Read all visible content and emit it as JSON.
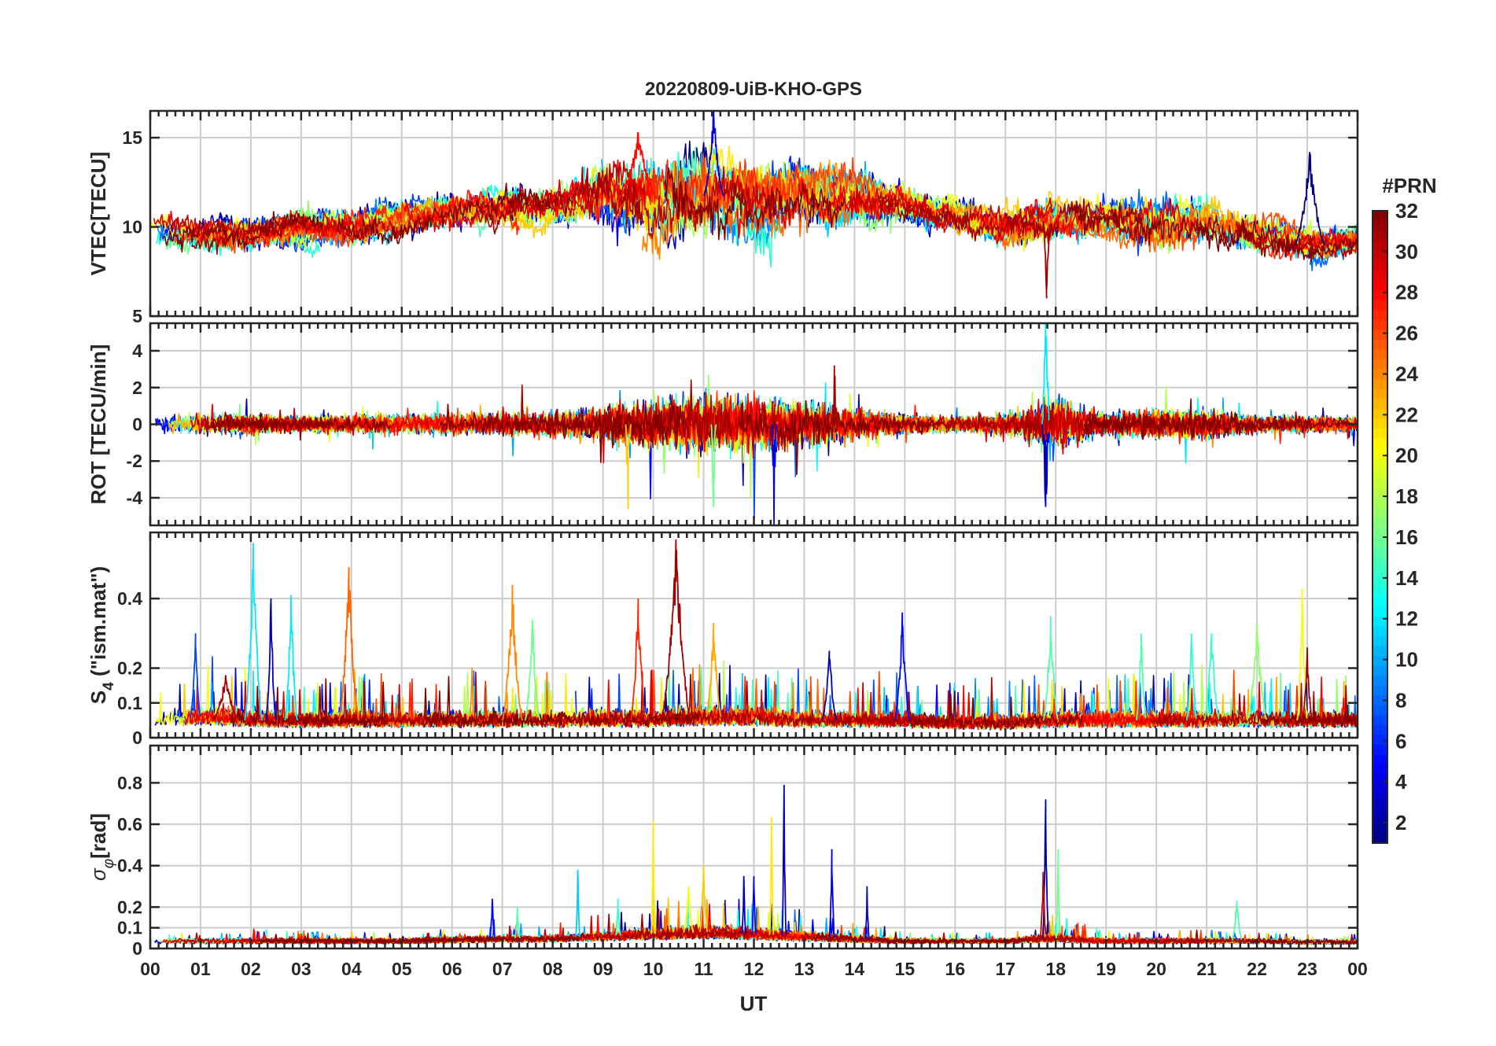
{
  "chart_data": [
    {
      "type": "line",
      "id": "vtec",
      "title": "20220809-UiB-KHO-GPS",
      "ylabel": "VTEC[TECU]",
      "ylim": [
        5,
        16.5
      ],
      "yticks": [
        5,
        10,
        15
      ],
      "base": [
        9.5,
        9.6,
        9.5,
        9.8,
        9.9,
        10.4,
        10.8,
        11.2,
        11.2,
        11.7,
        11.5,
        11.8,
        11.6,
        12.0,
        11.6,
        11.3,
        10.6,
        10.0,
        10.4,
        10.4,
        10.2,
        10.6,
        9.5,
        9.0,
        9.2
      ],
      "noise": [
        0.9,
        0.9,
        1.0,
        1.0,
        1.0,
        1.0,
        1.0,
        1.1,
        1.3,
        1.8,
        2.2,
        2.4,
        2.1,
        1.7,
        1.6,
        1.1,
        1.0,
        1.2,
        1.1,
        1.2,
        1.4,
        1.3,
        1.0,
        0.9,
        0.8
      ],
      "style": "wander"
    },
    {
      "type": "line",
      "id": "rot",
      "ylabel": "ROT [TECU/min]",
      "ylim": [
        -5.5,
        5.5
      ],
      "yticks": [
        -4,
        -2,
        0,
        2,
        4
      ],
      "base": [
        0,
        0,
        0,
        0,
        0,
        0,
        0,
        0,
        0,
        0,
        0,
        0,
        0,
        0,
        0,
        0,
        0,
        0,
        0,
        0,
        0,
        0,
        0,
        0,
        0
      ],
      "noise": [
        0.4,
        0.45,
        0.45,
        0.35,
        0.4,
        0.45,
        0.5,
        0.55,
        0.55,
        0.8,
        1.1,
        1.3,
        1.2,
        1.0,
        0.7,
        0.45,
        0.35,
        0.5,
        1.2,
        0.5,
        0.7,
        0.65,
        0.4,
        0.35,
        0.35
      ],
      "style": "zero"
    },
    {
      "type": "line",
      "id": "s4",
      "ylabel": "S4 (\"ism.mat\")",
      "ylabel_main": "S",
      "ylabel_sub": "4",
      "ylabel_rest": " (\"ism.mat\")",
      "ylim": [
        0,
        0.59
      ],
      "yticks": [
        0,
        0.1,
        0.2,
        0.4
      ],
      "base": [
        0.05,
        0.06,
        0.05,
        0.05,
        0.05,
        0.05,
        0.05,
        0.05,
        0.05,
        0.05,
        0.05,
        0.06,
        0.06,
        0.05,
        0.05,
        0.05,
        0.04,
        0.04,
        0.05,
        0.05,
        0.05,
        0.05,
        0.05,
        0.05,
        0.05
      ],
      "noise": [
        0.03,
        0.04,
        0.04,
        0.03,
        0.035,
        0.03,
        0.035,
        0.04,
        0.035,
        0.04,
        0.04,
        0.04,
        0.04,
        0.035,
        0.035,
        0.03,
        0.03,
        0.035,
        0.035,
        0.035,
        0.035,
        0.035,
        0.035,
        0.035,
        0.035
      ],
      "style": "positive"
    },
    {
      "type": "line",
      "id": "sigphi",
      "ylabel": "σφ[rad]",
      "ylabel_main": "σ",
      "ylabel_sub": "φ",
      "ylabel_rest": "[rad]",
      "ylim": [
        0,
        0.98
      ],
      "yticks": [
        0,
        0.1,
        0.2,
        0.4,
        0.6,
        0.8
      ],
      "base": [
        0.04,
        0.04,
        0.04,
        0.04,
        0.04,
        0.04,
        0.045,
        0.05,
        0.05,
        0.06,
        0.07,
        0.08,
        0.07,
        0.06,
        0.05,
        0.04,
        0.04,
        0.04,
        0.05,
        0.04,
        0.04,
        0.04,
        0.04,
        0.035,
        0.035
      ],
      "noise": [
        0.01,
        0.01,
        0.012,
        0.012,
        0.012,
        0.012,
        0.015,
        0.02,
        0.02,
        0.03,
        0.04,
        0.045,
        0.04,
        0.03,
        0.02,
        0.012,
        0.01,
        0.012,
        0.03,
        0.012,
        0.012,
        0.015,
        0.01,
        0.01,
        0.01
      ],
      "style": "positive"
    }
  ],
  "x_axis": {
    "label": "UT",
    "range_hours": [
      0,
      24
    ],
    "tick_labels": [
      "00",
      "01",
      "02",
      "03",
      "04",
      "05",
      "06",
      "07",
      "08",
      "09",
      "10",
      "11",
      "12",
      "13",
      "14",
      "15",
      "16",
      "17",
      "18",
      "19",
      "20",
      "21",
      "22",
      "23",
      "00"
    ]
  },
  "colorbar": {
    "label": "#PRN",
    "range": [
      1,
      32
    ],
    "tick_labels": [
      "2",
      "4",
      "6",
      "8",
      "10",
      "12",
      "14",
      "16",
      "18",
      "20",
      "22",
      "24",
      "26",
      "28",
      "30",
      "32"
    ],
    "colormap": "jet"
  },
  "series_prn": [
    1,
    2,
    3,
    4,
    5,
    6,
    7,
    8,
    9,
    10,
    11,
    12,
    13,
    14,
    15,
    16,
    17,
    18,
    19,
    20,
    21,
    22,
    23,
    24,
    25,
    26,
    27,
    28,
    29,
    30,
    31,
    32
  ],
  "events": {
    "vtec": [
      [
        23.05,
        14.2,
        0.6,
        1
      ],
      [
        17.82,
        6.0,
        0.15,
        31
      ],
      [
        11.2,
        16.5,
        0.4,
        4
      ],
      [
        9.7,
        15.2,
        0.8,
        28
      ]
    ],
    "rot": [
      [
        17.8,
        5.5,
        0.15,
        12
      ],
      [
        12.4,
        -5.5,
        0.1,
        4
      ],
      [
        17.8,
        -4.5,
        0.15,
        3
      ],
      [
        9.5,
        -4.6,
        0.1,
        22
      ],
      [
        11.2,
        -4.5,
        0.1,
        16
      ],
      [
        13.6,
        3.2,
        0.1,
        31
      ]
    ],
    "s4": [
      [
        2.05,
        0.56,
        0.35,
        12
      ],
      [
        10.45,
        0.57,
        0.6,
        31
      ],
      [
        3.95,
        0.49,
        0.4,
        25
      ],
      [
        7.2,
        0.44,
        0.4,
        24
      ],
      [
        22.9,
        0.43,
        0.2,
        20
      ],
      [
        9.7,
        0.4,
        0.3,
        27
      ],
      [
        2.8,
        0.41,
        0.25,
        12
      ],
      [
        2.4,
        0.4,
        0.2,
        3
      ],
      [
        14.95,
        0.36,
        0.3,
        5
      ],
      [
        17.9,
        0.35,
        0.3,
        15
      ],
      [
        13.5,
        0.25,
        0.3,
        3
      ],
      [
        0.9,
        0.3,
        0.2,
        7
      ],
      [
        21.1,
        0.3,
        0.3,
        14
      ],
      [
        22.0,
        0.33,
        0.4,
        17
      ],
      [
        11.2,
        0.33,
        0.3,
        23
      ],
      [
        1.5,
        0.18,
        0.5,
        31
      ],
      [
        19.7,
        0.3,
        0.2,
        15
      ],
      [
        20.7,
        0.3,
        0.2,
        14
      ],
      [
        7.6,
        0.34,
        0.3,
        16
      ],
      [
        23.0,
        0.25,
        0.2,
        31
      ]
    ],
    "sigphi": [
      [
        12.6,
        0.79,
        0.08,
        3
      ],
      [
        17.8,
        0.72,
        0.12,
        2
      ],
      [
        10.0,
        0.62,
        0.08,
        21
      ],
      [
        12.35,
        0.62,
        0.08,
        21
      ],
      [
        13.55,
        0.48,
        0.1,
        4
      ],
      [
        18.05,
        0.48,
        0.08,
        16
      ],
      [
        11.0,
        0.4,
        0.15,
        22
      ],
      [
        8.5,
        0.38,
        0.08,
        11
      ],
      [
        11.8,
        0.35,
        0.08,
        3
      ],
      [
        14.25,
        0.3,
        0.08,
        4
      ],
      [
        17.75,
        0.37,
        0.12,
        30
      ],
      [
        6.8,
        0.24,
        0.1,
        5
      ],
      [
        21.6,
        0.23,
        0.2,
        15
      ],
      [
        10.7,
        0.3,
        0.2,
        20
      ],
      [
        12.0,
        0.35,
        0.08,
        5
      ],
      [
        9.3,
        0.24,
        0.1,
        14
      ],
      [
        7.3,
        0.2,
        0.1,
        15
      ]
    ]
  }
}
